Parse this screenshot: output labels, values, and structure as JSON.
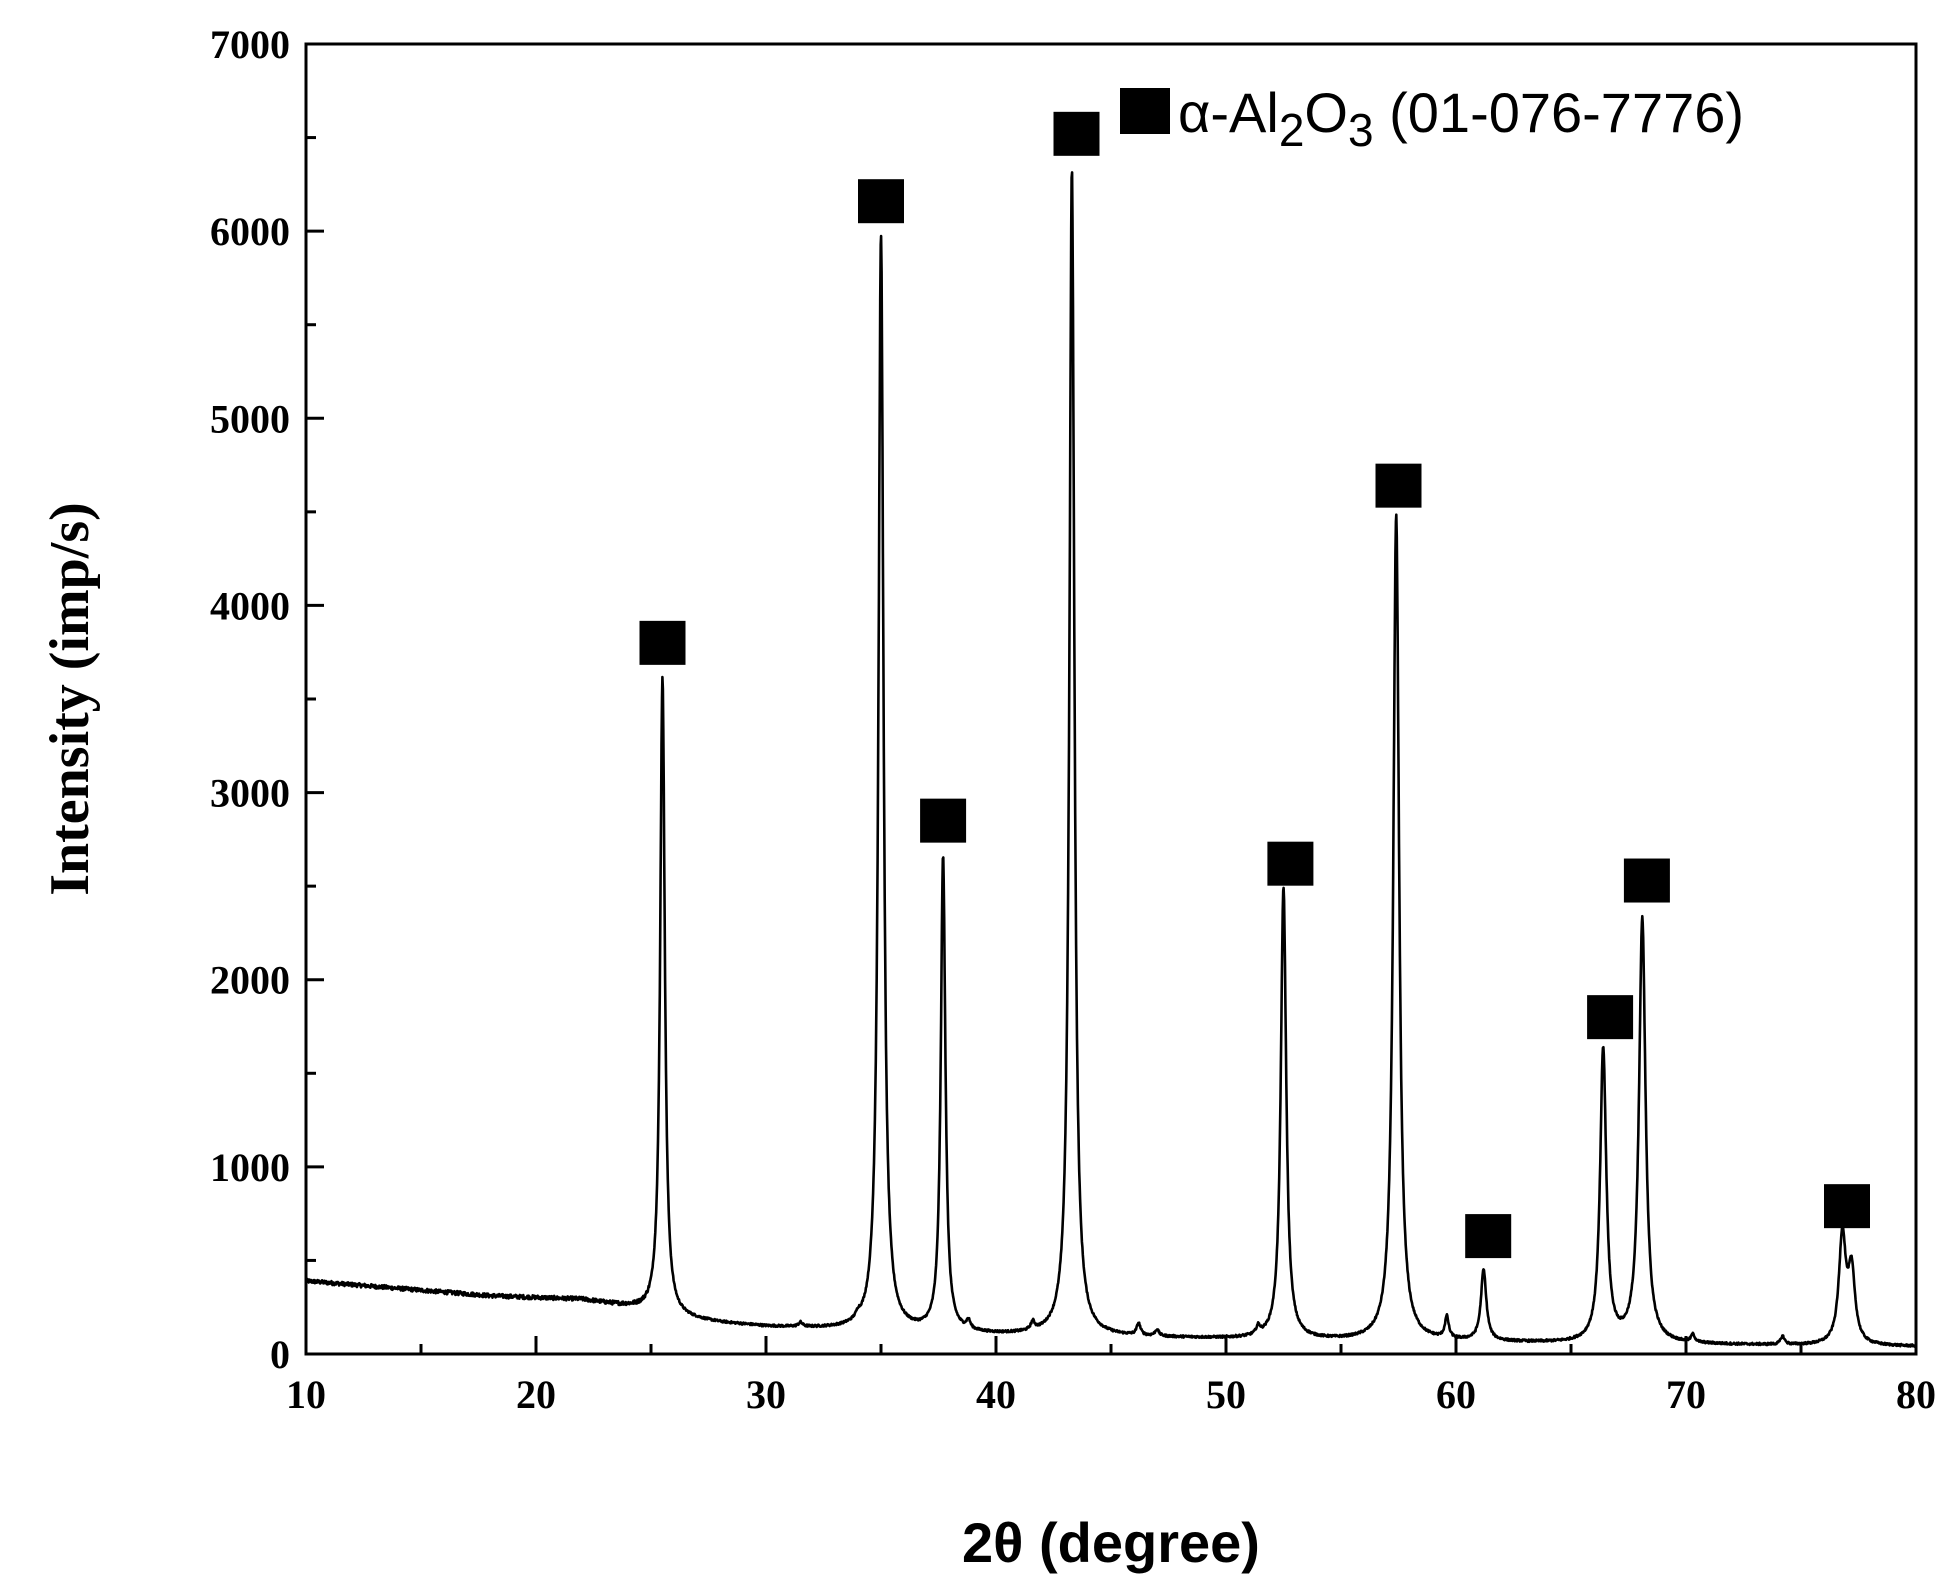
{
  "chart_data": {
    "type": "line",
    "xlabel": "2θ (degree)",
    "ylabel": "Intensity (imp/s)",
    "xlim": [
      10,
      80
    ],
    "ylim": [
      0,
      7000
    ],
    "xticks": [
      10,
      20,
      30,
      40,
      50,
      60,
      70,
      80
    ],
    "yticks": [
      0,
      1000,
      2000,
      3000,
      4000,
      5000,
      6000,
      7000
    ],
    "grid": false,
    "legend": {
      "placement": "top-right",
      "marker": "filled-square",
      "label_prefix": "α-Al",
      "sub1": "2",
      "label_mid": "O",
      "sub2": "3",
      "label_suffix": " (01-076-7776)"
    },
    "background": {
      "x": [
        10,
        12,
        15,
        18,
        20,
        22,
        24,
        26,
        28,
        30,
        35,
        40,
        45,
        50,
        55,
        60,
        65,
        70,
        75,
        80
      ],
      "y": [
        390,
        370,
        340,
        310,
        300,
        290,
        250,
        195,
        165,
        145,
        120,
        100,
        90,
        80,
        70,
        65,
        55,
        50,
        45,
        40
      ]
    },
    "peaks": [
      {
        "x": 25.5,
        "y": 3620,
        "w": 0.12
      },
      {
        "x": 35.0,
        "y": 5980,
        "w": 0.13
      },
      {
        "x": 37.7,
        "y": 2650,
        "w": 0.12
      },
      {
        "x": 43.3,
        "y": 6330,
        "w": 0.13
      },
      {
        "x": 52.5,
        "y": 2490,
        "w": 0.14
      },
      {
        "x": 57.4,
        "y": 4480,
        "w": 0.15
      },
      {
        "x": 61.2,
        "y": 440,
        "w": 0.14
      },
      {
        "x": 66.4,
        "y": 1620,
        "w": 0.16
      },
      {
        "x": 68.1,
        "y": 2320,
        "w": 0.17
      },
      {
        "x": 76.8,
        "y": 620,
        "w": 0.18
      },
      {
        "x": 77.2,
        "y": 420,
        "w": 0.18
      }
    ],
    "minor_peaks": [
      {
        "x": 31.5,
        "y": 160,
        "w": 0.1
      },
      {
        "x": 34.0,
        "y": 150,
        "w": 0.1
      },
      {
        "x": 38.8,
        "y": 150,
        "w": 0.1
      },
      {
        "x": 41.6,
        "y": 140,
        "w": 0.1
      },
      {
        "x": 46.2,
        "y": 150,
        "w": 0.1
      },
      {
        "x": 47.0,
        "y": 120,
        "w": 0.1
      },
      {
        "x": 51.4,
        "y": 120,
        "w": 0.1
      },
      {
        "x": 59.6,
        "y": 180,
        "w": 0.1
      },
      {
        "x": 70.3,
        "y": 90,
        "w": 0.1
      },
      {
        "x": 74.2,
        "y": 90,
        "w": 0.1
      }
    ],
    "markers": [
      {
        "x": 25.5,
        "y": 3800
      },
      {
        "x": 35.0,
        "y": 6160
      },
      {
        "x": 37.7,
        "y": 2850
      },
      {
        "x": 43.5,
        "y": 6520
      },
      {
        "x": 52.8,
        "y": 2620
      },
      {
        "x": 57.5,
        "y": 4640
      },
      {
        "x": 61.4,
        "y": 630
      },
      {
        "x": 66.7,
        "y": 1800
      },
      {
        "x": 68.3,
        "y": 2530
      },
      {
        "x": 77.0,
        "y": 790
      }
    ]
  }
}
